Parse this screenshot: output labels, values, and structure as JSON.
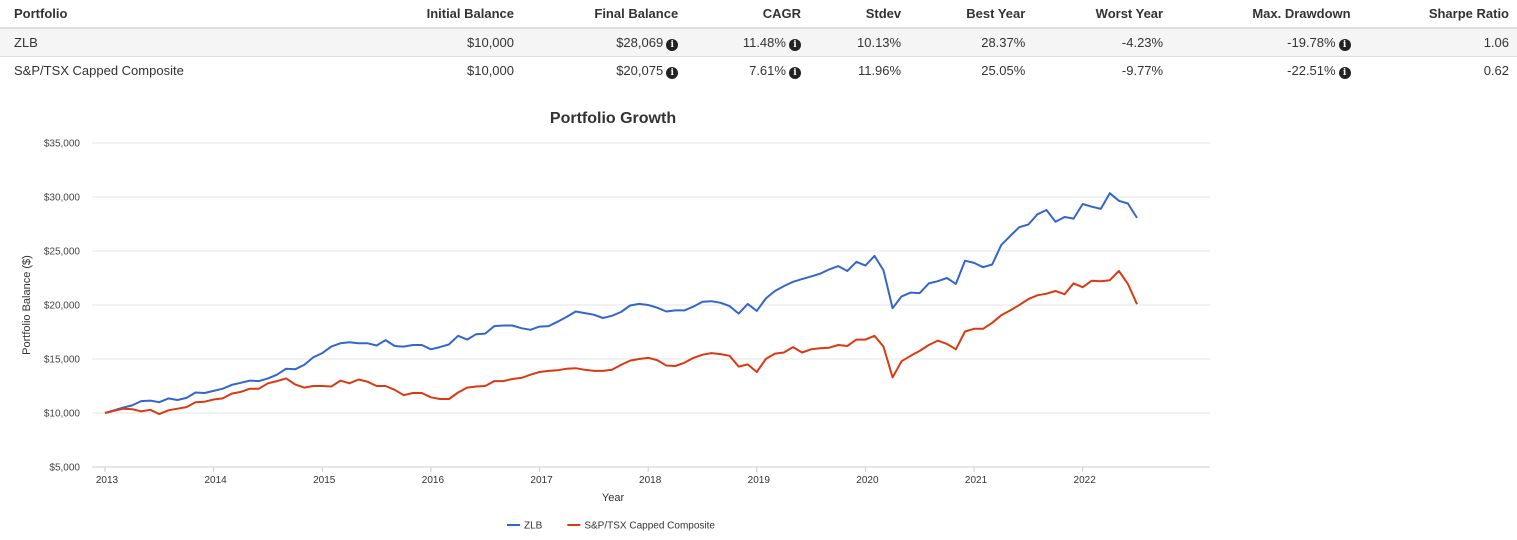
{
  "table": {
    "headers": [
      "Portfolio",
      "Initial Balance",
      "Final Balance",
      "CAGR",
      "Stdev",
      "Best Year",
      "Worst Year",
      "Max. Drawdown",
      "Sharpe Ratio"
    ],
    "rows": [
      {
        "portfolio": "ZLB",
        "initial_balance": "$10,000",
        "final_balance": "$28,069",
        "cagr": "11.48%",
        "stdev": "10.13%",
        "best_year": "28.37%",
        "worst_year": "-4.23%",
        "max_drawdown": "-19.78%",
        "sharpe_ratio": "1.06"
      },
      {
        "portfolio": "S&P/TSX Capped Composite",
        "initial_balance": "$10,000",
        "final_balance": "$20,075",
        "cagr": "7.61%",
        "stdev": "11.96%",
        "best_year": "25.05%",
        "worst_year": "-9.77%",
        "max_drawdown": "-22.51%",
        "sharpe_ratio": "0.62"
      }
    ],
    "info_icon": "info-circle-icon"
  },
  "chart_data": {
    "type": "line",
    "title": "Portfolio Growth",
    "xlabel": "Year",
    "ylabel": "Portfolio Balance ($)",
    "ylim": [
      5000,
      35000
    ],
    "xlim": [
      2013.0,
      2022.5
    ],
    "yticks": [
      "$5,000",
      "$10,000",
      "$15,000",
      "$20,000",
      "$25,000",
      "$30,000",
      "$35,000"
    ],
    "ytick_values": [
      5000,
      10000,
      15000,
      20000,
      25000,
      30000,
      35000
    ],
    "xticks": [
      "2013",
      "2014",
      "2015",
      "2016",
      "2017",
      "2018",
      "2019",
      "2020",
      "2021",
      "2022"
    ],
    "xtick_values": [
      2013,
      2014,
      2015,
      2016,
      2017,
      2018,
      2019,
      2020,
      2021,
      2022
    ],
    "grid": true,
    "legend_position": "bottom",
    "x_start": 2013.0,
    "x_step_months": 1,
    "series": [
      {
        "name": "ZLB",
        "color": "#3366cc",
        "values": [
          10000,
          10250,
          10500,
          10700,
          11100,
          11150,
          11000,
          11350,
          11200,
          11400,
          11900,
          11850,
          12050,
          12250,
          12600,
          12800,
          13000,
          12950,
          13200,
          13550,
          14100,
          14050,
          14450,
          15150,
          15550,
          16150,
          16450,
          16550,
          16450,
          16450,
          16250,
          16750,
          16200,
          16150,
          16300,
          16300,
          15900,
          16100,
          16350,
          17150,
          16800,
          17300,
          17350,
          18050,
          18100,
          18100,
          17850,
          17700,
          18000,
          18050,
          18450,
          18900,
          19400,
          19250,
          19100,
          18800,
          19000,
          19350,
          19950,
          20100,
          20000,
          19750,
          19400,
          19500,
          19500,
          19850,
          20300,
          20350,
          20200,
          19900,
          19200,
          20100,
          19450,
          20600,
          21300,
          21750,
          22150,
          22400,
          22650,
          22900,
          23300,
          23600,
          23150,
          24000,
          23650,
          24550,
          23200,
          19700,
          20800,
          21150,
          21100,
          22000,
          22200,
          22500,
          21950,
          24100,
          23900,
          23500,
          23750,
          25550,
          26400,
          27200,
          27450,
          28400,
          28800,
          27700,
          28150,
          28000,
          29350,
          29100,
          28900,
          30350,
          29650,
          29400,
          28069
        ]
      },
      {
        "name": "S&P/TSX Capped Composite",
        "color": "#dc3912",
        "values": [
          10000,
          10200,
          10400,
          10350,
          10150,
          10300,
          9900,
          10250,
          10400,
          10550,
          11000,
          11050,
          11250,
          11350,
          11800,
          11950,
          12250,
          12250,
          12750,
          12950,
          13200,
          12650,
          12350,
          12500,
          12500,
          12450,
          13000,
          12750,
          13100,
          12900,
          12500,
          12500,
          12150,
          11650,
          11850,
          11850,
          11450,
          11300,
          11300,
          11900,
          12350,
          12450,
          12500,
          12950,
          12950,
          13150,
          13250,
          13550,
          13800,
          13900,
          13950,
          14100,
          14150,
          14000,
          13900,
          13900,
          14000,
          14450,
          14850,
          15000,
          15100,
          14900,
          14400,
          14350,
          14650,
          15100,
          15400,
          15550,
          15450,
          15300,
          14300,
          14500,
          13800,
          15000,
          15500,
          15600,
          16100,
          15600,
          15900,
          16000,
          16050,
          16300,
          16200,
          16800,
          16800,
          17150,
          16150,
          13300,
          14800,
          15300,
          15750,
          16300,
          16700,
          16400,
          15900,
          17550,
          17800,
          17800,
          18350,
          19050,
          19500,
          20000,
          20550,
          20900,
          21050,
          21300,
          21000,
          22000,
          21650,
          22250,
          22200,
          22300,
          23150,
          21950,
          20075
        ]
      }
    ]
  }
}
